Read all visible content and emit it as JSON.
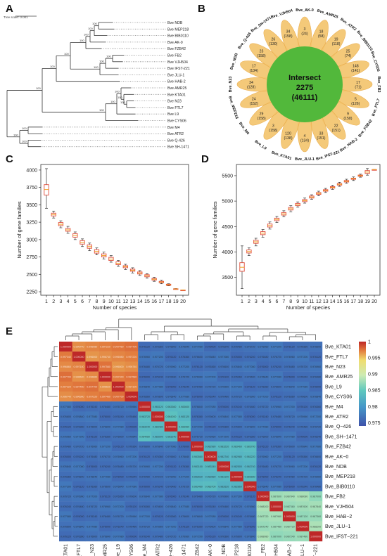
{
  "panels": {
    "A": {
      "letter": "A",
      "scale_label": "Tree scale: 0.001",
      "leaves": [
        "Bve NDB",
        "Bve MEP218",
        "Bve BIB0110",
        "Bve AK-0",
        "Bve FZB42",
        "Bve FB2",
        "Bve VJH504",
        "Bve IFST-221",
        "Bve JLU-1",
        "Bve HAB-2",
        "Bve AMR25",
        "Bve KTA01",
        "Bve N23",
        "Bve FTL7",
        "Bve L9",
        "Bve CYS06",
        "Bve M4",
        "Bve ATR2",
        "Bve Q-426",
        "Bve SH-1471"
      ],
      "bootstrap_labels": [
        "100",
        "100",
        "100",
        "100",
        "100",
        "100",
        "100",
        "100",
        "100",
        "100",
        "100",
        "100",
        "100",
        "100",
        "100",
        "100",
        "100",
        "100",
        "100"
      ]
    },
    "B": {
      "letter": "B",
      "center_title": "Intersect",
      "center_value": "2275",
      "center_total": "(46111)",
      "petals": [
        {
          "name": "Bve_AK-0",
          "v1": "3",
          "v2": "(24)"
        },
        {
          "name": "Bve_AMR25",
          "v1": "18",
          "v2": "(58)"
        },
        {
          "name": "Bve_ATR2",
          "v1": "19",
          "v2": "(118)"
        },
        {
          "name": "Bve_BIB0110",
          "v1": "25",
          "v2": "(74)"
        },
        {
          "name": "Bve_CYS06",
          "v1": "148",
          "v2": "(141)"
        },
        {
          "name": "Bve_FB2",
          "v1": "17",
          "v2": "(71)"
        },
        {
          "name": "Bve_FTL7",
          "v1": "5",
          "v2": "(126)"
        },
        {
          "name": "Bve_FZB42",
          "v1": "9",
          "v2": "(158)"
        },
        {
          "name": "Bve_HAB-2",
          "v1": "22",
          "v2": "(151)"
        },
        {
          "name": "Bve_IFST-221",
          "v1": "33",
          "v2": "(151)"
        },
        {
          "name": "Bve_JLU-1",
          "v1": "4",
          "v2": "(134)"
        },
        {
          "name": "Bve_KTA01",
          "v1": "120",
          "v2": "(138)"
        },
        {
          "name": "Bve_L9",
          "v1": "3",
          "v2": "(158)"
        },
        {
          "name": "Bve_M4",
          "v1": "29",
          "v2": "(158)"
        },
        {
          "name": "Bve_MEP218",
          "v1": "24",
          "v2": "(152)"
        },
        {
          "name": "Bve_N23",
          "v1": "34",
          "v2": "(128)"
        },
        {
          "name": "Bve_NDB",
          "v1": "17",
          "v2": "(134)"
        },
        {
          "name": "Bve_Q-426",
          "v1": "23",
          "v2": "(158)"
        },
        {
          "name": "Bve_SH-1471",
          "v1": "26",
          "v2": "(130)"
        },
        {
          "name": "Bve_VJH504",
          "v1": "34",
          "v2": "(158)"
        }
      ]
    },
    "C": {
      "letter": "C",
      "chart_data": {
        "type": "boxplot",
        "xlabel": "Number of species",
        "ylabel": "Number of gene families",
        "x": [
          1,
          2,
          3,
          4,
          5,
          6,
          7,
          8,
          9,
          10,
          11,
          12,
          13,
          14,
          15,
          16,
          17,
          18,
          19,
          20
        ],
        "median": [
          3720,
          3360,
          3220,
          3140,
          3060,
          2960,
          2900,
          2830,
          2770,
          2720,
          2660,
          2610,
          2560,
          2520,
          2480,
          2430,
          2390,
          2350,
          2290,
          2275
        ],
        "q1": [
          3640,
          3340,
          3200,
          3120,
          3035,
          2935,
          2875,
          2805,
          2750,
          2700,
          2640,
          2595,
          2545,
          2505,
          2465,
          2418,
          2380,
          2342,
          2287,
          2275
        ],
        "q3": [
          3790,
          3380,
          3245,
          3160,
          3085,
          2985,
          2925,
          2855,
          2795,
          2745,
          2680,
          2625,
          2575,
          2535,
          2495,
          2442,
          2400,
          2358,
          2293,
          2275
        ],
        "whisker_low": [
          3450,
          3310,
          3170,
          3090,
          3000,
          2900,
          2840,
          2780,
          2720,
          2675,
          2615,
          2570,
          2520,
          2485,
          2445,
          2400,
          2365,
          2335,
          2284,
          2275
        ],
        "whisker_high": [
          4020,
          3410,
          3270,
          3190,
          3110,
          3010,
          2950,
          2880,
          2820,
          2770,
          2700,
          2645,
          2595,
          2555,
          2510,
          2458,
          2415,
          2365,
          2296,
          2275
        ],
        "yticks": [
          2250,
          2500,
          2750,
          3000,
          3250,
          3500,
          3750,
          4000
        ],
        "ylim": [
          2200,
          4080
        ]
      }
    },
    "D": {
      "letter": "D",
      "chart_data": {
        "type": "boxplot",
        "xlabel": "Number of species",
        "ylabel": "Number of gene families",
        "x": [
          1,
          2,
          3,
          4,
          5,
          6,
          7,
          8,
          9,
          10,
          11,
          12,
          13,
          14,
          15,
          16,
          17,
          18,
          19,
          20
        ],
        "median": [
          3700,
          4010,
          4200,
          4370,
          4520,
          4640,
          4750,
          4850,
          4930,
          5010,
          5080,
          5150,
          5210,
          5270,
          5330,
          5390,
          5440,
          5500,
          5570,
          5620
        ],
        "q1": [
          3620,
          3980,
          4170,
          4340,
          4490,
          4615,
          4725,
          4825,
          4910,
          4990,
          5060,
          5132,
          5195,
          5255,
          5315,
          5375,
          5428,
          5488,
          5545,
          5620
        ],
        "q3": [
          3790,
          4040,
          4230,
          4400,
          4550,
          4665,
          4775,
          4875,
          4955,
          5030,
          5100,
          5168,
          5225,
          5285,
          5345,
          5405,
          5452,
          5512,
          5600,
          5620
        ],
        "whisker_low": [
          3280,
          3930,
          4120,
          4290,
          4450,
          4580,
          4690,
          4790,
          4880,
          4960,
          5035,
          5105,
          5170,
          5230,
          5290,
          5350,
          5405,
          5470,
          5510,
          5620
        ],
        "whisker_high": [
          4120,
          4080,
          4270,
          4440,
          4590,
          4700,
          4810,
          4910,
          4985,
          5060,
          5125,
          5195,
          5250,
          5310,
          5370,
          5430,
          5475,
          5530,
          5640,
          5620
        ],
        "yticks": [
          3500,
          4000,
          4500,
          5000,
          5500
        ],
        "ylim": [
          3150,
          5720
        ]
      }
    },
    "E": {
      "letter": "E",
      "row_labels": [
        "Bve_KTA01",
        "Bve_FTL7",
        "Bve_N23",
        "Bve_AMR25",
        "Bve_L9",
        "Bve_CYS06",
        "Bve_M4",
        "Bve_ATR2",
        "Bve_Q−426",
        "Bve_SH−1471",
        "Bve_FZB42",
        "Bve_AK−0",
        "Bve_NDB",
        "Bve_MEP218",
        "Bve_BIB0110",
        "Bve_FB2",
        "Bve_VJH504",
        "Bve_HAB−2",
        "Bve_JLU−1",
        "Bve_IFST−221"
      ],
      "col_labels": [
        "Bve_KTA01",
        "Bve_FTL7",
        "Bve_N23",
        "Bve_AMR25",
        "Bve_L9",
        "Bve_CYS06",
        "Bve_M4",
        "Bve_ATR2",
        "Bve_Q−426",
        "Bve_SH−1471",
        "Bve_FZB42",
        "Bve_AK−0",
        "Bve_NDB",
        "Bve_MEP218",
        "Bve_BIB0110",
        "Bve_FB2",
        "Bve_VJH504",
        "Bve_HAB−2",
        "Bve_JLU−1",
        "Bve_IFST−221"
      ],
      "colorbar_ticks": [
        "1",
        "0.995",
        "0.99",
        "0.985",
        "0.98",
        "0.975"
      ],
      "colorbar_min": 0.974,
      "colorbar_max": 1.0,
      "groups": [
        0,
        0,
        0,
        0,
        0,
        0,
        1,
        1,
        1,
        1,
        2,
        2,
        2,
        2,
        2,
        3,
        3,
        3,
        3,
        3
      ],
      "within_group_values": [
        0.9965,
        0.983,
        0.9825,
        0.987
      ],
      "between_group_value": 0.976
    }
  },
  "colors": {
    "petal": "#f4c56e",
    "petal_edge": "#e8a945",
    "center": "#52b83b",
    "box": "#e04b3a",
    "median": "#f0a020"
  }
}
